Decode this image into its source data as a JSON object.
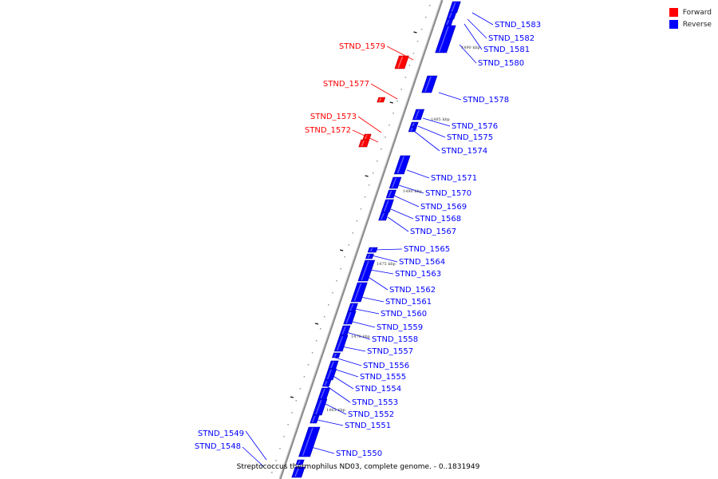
{
  "legend": {
    "forward": {
      "label": "Forward",
      "color": "#ff0000"
    },
    "reverse": {
      "label": "Reverse",
      "color": "#0000ff"
    }
  },
  "caption": "Streptococcus thermophilus ND03, complete genome. - 0..1831949",
  "ruler_labels": [
    "1490 kbp",
    "1485 kbp",
    "1480 kbp",
    "1475 kbp",
    "1470 kbp",
    "1465 kbp"
  ],
  "genes": [
    {
      "name": "STND_1583",
      "strand": "reverse"
    },
    {
      "name": "STND_1582",
      "strand": "reverse"
    },
    {
      "name": "STND_1581",
      "strand": "reverse"
    },
    {
      "name": "STND_1580",
      "strand": "reverse"
    },
    {
      "name": "STND_1579",
      "strand": "forward"
    },
    {
      "name": "STND_1578",
      "strand": "reverse"
    },
    {
      "name": "STND_1577",
      "strand": "forward"
    },
    {
      "name": "STND_1576",
      "strand": "reverse"
    },
    {
      "name": "STND_1575",
      "strand": "reverse"
    },
    {
      "name": "STND_1574",
      "strand": "reverse"
    },
    {
      "name": "STND_1573",
      "strand": "forward"
    },
    {
      "name": "STND_1572",
      "strand": "forward"
    },
    {
      "name": "STND_1571",
      "strand": "reverse"
    },
    {
      "name": "STND_1570",
      "strand": "reverse"
    },
    {
      "name": "STND_1569",
      "strand": "reverse"
    },
    {
      "name": "STND_1568",
      "strand": "reverse"
    },
    {
      "name": "STND_1567",
      "strand": "reverse"
    },
    {
      "name": "STND_1565",
      "strand": "reverse"
    },
    {
      "name": "STND_1564",
      "strand": "reverse"
    },
    {
      "name": "STND_1563",
      "strand": "reverse"
    },
    {
      "name": "STND_1562",
      "strand": "reverse"
    },
    {
      "name": "STND_1561",
      "strand": "reverse"
    },
    {
      "name": "STND_1560",
      "strand": "reverse"
    },
    {
      "name": "STND_1559",
      "strand": "reverse"
    },
    {
      "name": "STND_1558",
      "strand": "reverse"
    },
    {
      "name": "STND_1557",
      "strand": "reverse"
    },
    {
      "name": "STND_1556",
      "strand": "reverse"
    },
    {
      "name": "STND_1555",
      "strand": "reverse"
    },
    {
      "name": "STND_1554",
      "strand": "reverse"
    },
    {
      "name": "STND_1553",
      "strand": "reverse"
    },
    {
      "name": "STND_1552",
      "strand": "reverse"
    },
    {
      "name": "STND_1551",
      "strand": "reverse"
    },
    {
      "name": "STND_1549",
      "strand": "reverse"
    },
    {
      "name": "STND_1548",
      "strand": "reverse"
    },
    {
      "name": "STND_1550",
      "strand": "reverse"
    }
  ]
}
